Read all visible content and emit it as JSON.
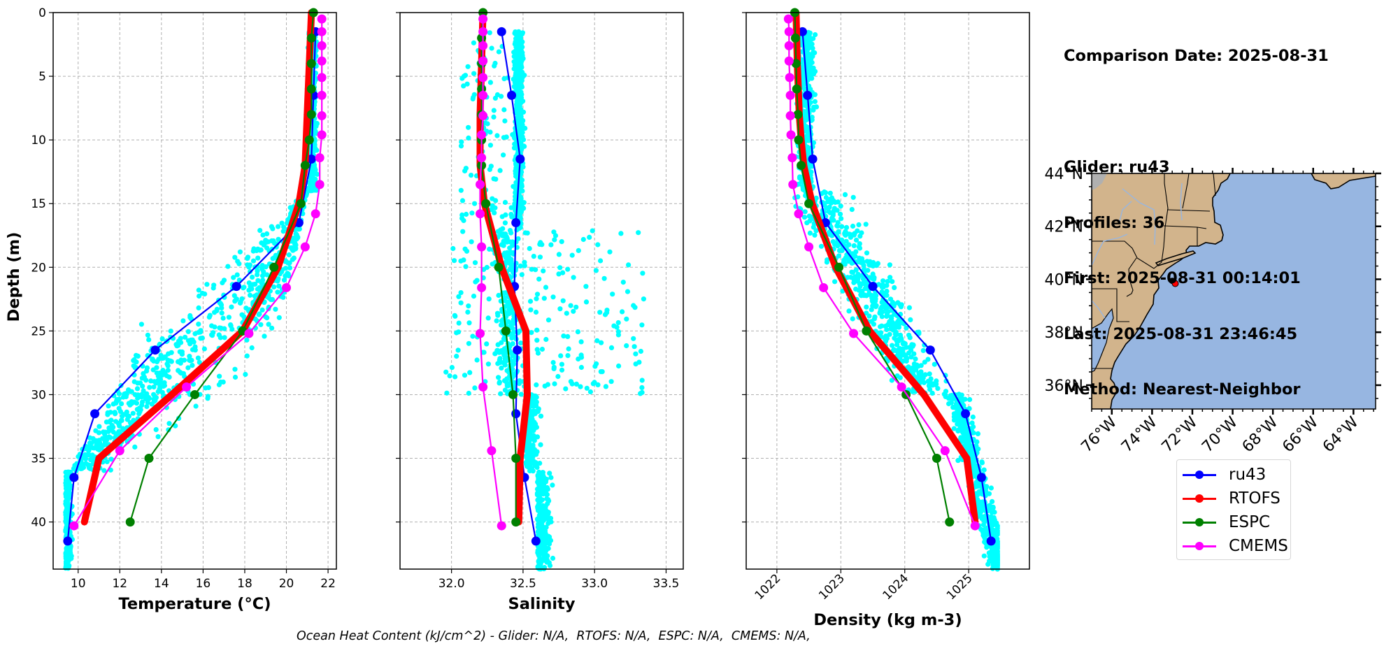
{
  "info_box": {
    "comparison_date": "Comparison Date: 2025-08-31",
    "glider": "Glider: ru43",
    "profiles": "Profiles: 36",
    "first": "First: 2025-08-31 00:14:01",
    "last": "Last: 2025-08-31 23:46:45",
    "method": "Method: Nearest-Neighbor"
  },
  "footer": {
    "ohc_text": "Ocean Heat Content (kJ/cm^2) - Glider: N/A,  RTOFS: N/A,  ESPC: N/A,  CMEMS: N/A,"
  },
  "legend": {
    "placement": "below-map",
    "items": [
      {
        "label": "ru43",
        "color": "#0000ff"
      },
      {
        "label": "RTOFS",
        "color": "#ff0000"
      },
      {
        "label": "ESPC",
        "color": "#008000"
      },
      {
        "label": "CMEMS",
        "color": "#ff00ff"
      }
    ]
  },
  "colors": {
    "glider_scatter": "#00ffff",
    "ru43": "#0000ff",
    "RTOFS": "#ff0000",
    "ESPC": "#008000",
    "CMEMS": "#ff00ff",
    "land": "#d2b48c",
    "ocean": "#97b6e1",
    "grid": "#b0b0b0"
  },
  "chart_data": [
    {
      "type": "line",
      "title": "",
      "xlabel": "Temperature (°C)",
      "ylabel": "Depth (m)",
      "xlim": [
        8.8,
        22.4
      ],
      "ylim": [
        43.7,
        0
      ],
      "grid": true,
      "xticks": [
        10,
        12,
        14,
        16,
        18,
        20,
        22
      ],
      "yticks": [
        0,
        5,
        10,
        15,
        20,
        25,
        30,
        35,
        40
      ],
      "scatter_cloud": {
        "name": "glider observations",
        "color": "#00ffff",
        "depth_range": [
          1.5,
          43.7
        ],
        "surface_value_range": [
          21.0,
          21.8
        ],
        "deep_value": 9.4,
        "thermocline_spread": [
          10.0,
          21.5
        ]
      },
      "series": [
        {
          "name": "ru43",
          "color": "#0000ff",
          "depth": [
            1.5,
            6.5,
            11.5,
            16.5,
            21.5,
            26.5,
            31.5,
            36.5,
            41.5
          ],
          "values": [
            21.4,
            21.3,
            21.2,
            20.6,
            17.6,
            13.7,
            10.8,
            9.8,
            9.5
          ]
        },
        {
          "name": "RTOFS",
          "color": "#ff0000",
          "depth": [
            0,
            2,
            4,
            6,
            8,
            10,
            12,
            15,
            20,
            25,
            30,
            35,
            40
          ],
          "values": [
            21.2,
            21.15,
            21.1,
            21.05,
            21.0,
            20.95,
            20.9,
            20.6,
            19.6,
            17.9,
            14.5,
            11.0,
            10.3
          ]
        },
        {
          "name": "ESPC",
          "color": "#008000",
          "depth": [
            0,
            2,
            4,
            6,
            8,
            10,
            12,
            15,
            20,
            25,
            30,
            35,
            40
          ],
          "values": [
            21.3,
            21.2,
            21.2,
            21.2,
            21.2,
            21.1,
            20.9,
            20.7,
            19.4,
            17.9,
            15.6,
            13.4,
            12.5
          ]
        },
        {
          "name": "CMEMS",
          "color": "#ff00ff",
          "depth": [
            0.5,
            1.5,
            2.6,
            3.8,
            5.1,
            6.5,
            8.1,
            9.6,
            11.4,
            13.5,
            15.8,
            18.4,
            21.6,
            25.2,
            29.4,
            34.4,
            40.3
          ],
          "values": [
            21.7,
            21.7,
            21.7,
            21.7,
            21.7,
            21.7,
            21.7,
            21.7,
            21.6,
            21.6,
            21.4,
            20.9,
            20.0,
            18.2,
            15.2,
            12.0,
            9.8
          ]
        }
      ]
    },
    {
      "type": "line",
      "title": "",
      "xlabel": "Salinity",
      "ylabel": "",
      "xlim": [
        31.64,
        33.62
      ],
      "ylim": [
        43.7,
        0
      ],
      "grid": true,
      "xticks": [
        32.0,
        32.5,
        33.0,
        33.5
      ],
      "yticks": [
        0,
        5,
        10,
        15,
        20,
        25,
        30,
        35,
        40
      ],
      "scatter_cloud": {
        "name": "glider observations",
        "color": "#00ffff",
        "depth_range": [
          2.5,
          43.7
        ],
        "core_value_range": [
          32.4,
          32.55
        ],
        "spread_value_range": [
          31.9,
          33.4
        ]
      },
      "series": [
        {
          "name": "ru43",
          "color": "#0000ff",
          "depth": [
            1.5,
            6.5,
            11.5,
            16.5,
            21.5,
            26.5,
            31.5,
            36.5,
            41.5
          ],
          "values": [
            32.35,
            32.42,
            32.48,
            32.45,
            32.44,
            32.46,
            32.45,
            32.51,
            32.59
          ]
        },
        {
          "name": "RTOFS",
          "color": "#ff0000",
          "depth": [
            0,
            4,
            8,
            10,
            12,
            15,
            20,
            25,
            30,
            35,
            40
          ],
          "values": [
            32.22,
            32.21,
            32.2,
            32.2,
            32.2,
            32.23,
            32.35,
            32.52,
            32.53,
            32.48,
            32.47
          ]
        },
        {
          "name": "ESPC",
          "color": "#008000",
          "depth": [
            0,
            2,
            4,
            6,
            8,
            10,
            12,
            15,
            20,
            25,
            30,
            35,
            40
          ],
          "values": [
            32.22,
            32.21,
            32.21,
            32.21,
            32.21,
            32.21,
            32.21,
            32.24,
            32.33,
            32.38,
            32.43,
            32.45,
            32.45
          ]
        },
        {
          "name": "CMEMS",
          "color": "#ff00ff",
          "depth": [
            0.5,
            1.5,
            2.6,
            3.8,
            5.1,
            6.5,
            8.1,
            9.6,
            11.4,
            13.5,
            15.8,
            18.4,
            21.6,
            25.2,
            29.4,
            34.4,
            40.3
          ],
          "values": [
            32.22,
            32.22,
            32.22,
            32.22,
            32.22,
            32.22,
            32.22,
            32.21,
            32.21,
            32.2,
            32.2,
            32.21,
            32.21,
            32.2,
            32.22,
            32.28,
            32.35
          ]
        }
      ]
    },
    {
      "type": "line",
      "title": "",
      "xlabel": "Density (kg m-3)",
      "ylabel": "",
      "xlim": [
        1021.52,
        1025.95
      ],
      "ylim": [
        43.7,
        0
      ],
      "grid": true,
      "xticks": [
        1022,
        1023,
        1024,
        1025
      ],
      "yticks": [
        0,
        5,
        10,
        15,
        20,
        25,
        30,
        35,
        40
      ],
      "scatter_cloud": {
        "name": "glider observations",
        "color": "#00ffff",
        "depth_range": [
          2.5,
          43.7
        ],
        "surface_value_range": [
          1022.0,
          1022.6
        ],
        "deep_value": 1025.4
      },
      "series": [
        {
          "name": "ru43",
          "color": "#0000ff",
          "depth": [
            1.5,
            6.5,
            11.5,
            16.5,
            21.5,
            26.5,
            31.5,
            36.5,
            41.5
          ],
          "values": [
            1022.4,
            1022.48,
            1022.56,
            1022.76,
            1023.5,
            1024.4,
            1024.95,
            1025.2,
            1025.35
          ]
        },
        {
          "name": "RTOFS",
          "color": "#ff0000",
          "depth": [
            0,
            4,
            8,
            10,
            12,
            15,
            20,
            25,
            30,
            35,
            40
          ],
          "values": [
            1022.3,
            1022.32,
            1022.35,
            1022.38,
            1022.42,
            1022.55,
            1022.92,
            1023.45,
            1024.3,
            1024.97,
            1025.1
          ]
        },
        {
          "name": "ESPC",
          "color": "#008000",
          "depth": [
            0,
            2,
            4,
            6,
            8,
            10,
            12,
            15,
            20,
            25,
            30,
            35,
            40
          ],
          "values": [
            1022.28,
            1022.29,
            1022.3,
            1022.31,
            1022.33,
            1022.34,
            1022.38,
            1022.5,
            1022.97,
            1023.4,
            1024.02,
            1024.5,
            1024.7
          ]
        },
        {
          "name": "CMEMS",
          "color": "#ff00ff",
          "depth": [
            0.5,
            1.5,
            2.6,
            3.8,
            5.1,
            6.5,
            8.1,
            9.6,
            11.4,
            13.5,
            15.8,
            18.4,
            21.6,
            25.2,
            29.4,
            34.4,
            40.3
          ],
          "values": [
            1022.18,
            1022.19,
            1022.19,
            1022.19,
            1022.2,
            1022.21,
            1022.21,
            1022.22,
            1022.24,
            1022.25,
            1022.34,
            1022.5,
            1022.73,
            1023.2,
            1023.95,
            1024.63,
            1025.1
          ]
        }
      ]
    },
    {
      "type": "scatter",
      "title": "",
      "xlabel": "",
      "ylabel": "",
      "xlim": [
        -77.0,
        -62.9
      ],
      "ylim": [
        35.1,
        44.0
      ],
      "grid": false,
      "xticks": [
        -76,
        -74,
        -72,
        -70,
        -68,
        -66,
        -64
      ],
      "xtick_labels": [
        "76°W",
        "74°W",
        "72°W",
        "70°W",
        "68°W",
        "66°W",
        "64°W"
      ],
      "yticks": [
        36,
        38,
        40,
        42,
        44
      ],
      "ytick_labels": [
        "36°N",
        "38°N",
        "40°N",
        "42°N",
        "44°N"
      ],
      "points": [
        {
          "name": "glider track",
          "lon": -73.0,
          "lat": 39.94,
          "color": "#000000"
        },
        {
          "name": "glider position",
          "lon": -72.85,
          "lat": 39.84,
          "color": "#ff0000"
        }
      ]
    }
  ]
}
